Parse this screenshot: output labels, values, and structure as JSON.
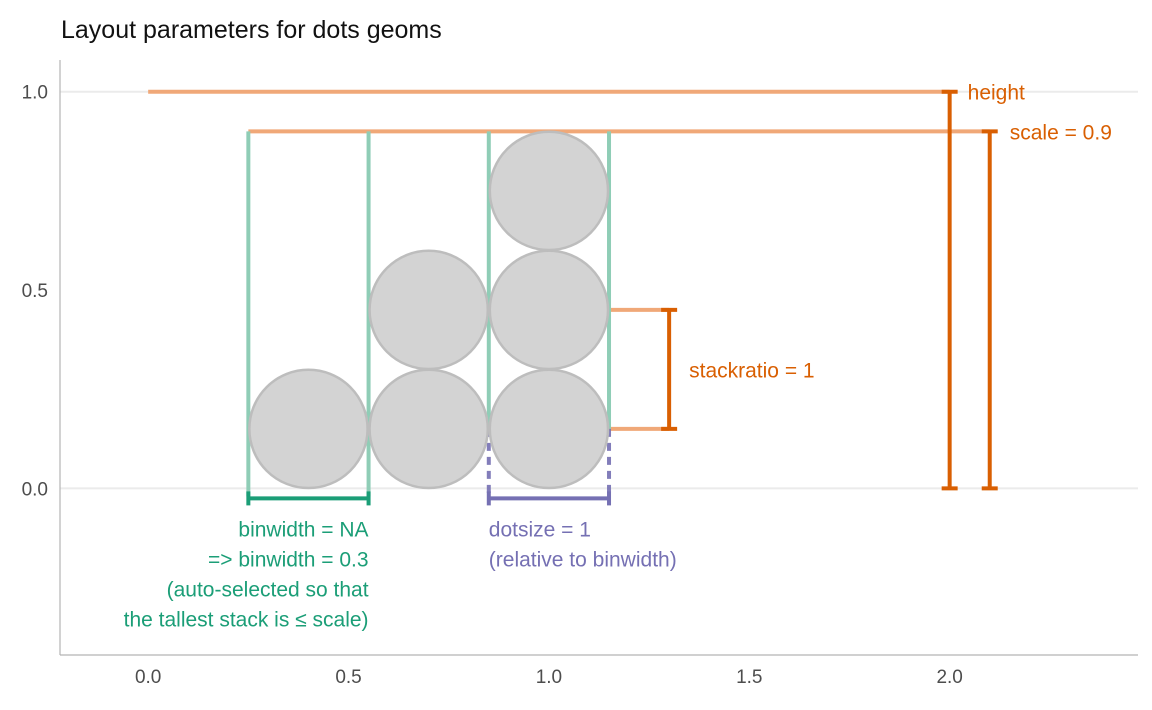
{
  "chart_data": {
    "type": "scatter",
    "title": "Layout parameters for dots geoms",
    "xlabel": "",
    "ylabel": "",
    "xlim": [
      -0.22,
      2.47
    ],
    "ylim": [
      -0.42,
      1.08
    ],
    "x_ticks": [
      0.0,
      0.5,
      1.0,
      1.5,
      2.0
    ],
    "x_tick_labels": [
      "0.0",
      "0.5",
      "1.0",
      "1.5",
      "2.0"
    ],
    "y_ticks": [
      0.0,
      0.5,
      1.0
    ],
    "y_tick_labels": [
      "0.0",
      "0.5",
      "1.0"
    ],
    "y_gridlines": [
      0.0,
      1.0
    ],
    "dots": [
      {
        "x": 0.4,
        "y": 0.15
      },
      {
        "x": 0.7,
        "y": 0.15
      },
      {
        "x": 0.7,
        "y": 0.45
      },
      {
        "x": 1.0,
        "y": 0.15
      },
      {
        "x": 1.0,
        "y": 0.45
      },
      {
        "x": 1.0,
        "y": 0.75
      }
    ],
    "dot_diameter": 0.3,
    "bin_edges": [
      0.25,
      0.55,
      0.85,
      1.15
    ],
    "height_line": {
      "x_start": 0.0,
      "x_end": 2.0,
      "y": 1.0
    },
    "scale_line": {
      "x_start": 0.25,
      "x_end": 2.1,
      "y": 0.9
    },
    "height_bracket": {
      "x": 2.0,
      "y_min": 0.0,
      "y_max": 1.0
    },
    "scale_bracket": {
      "x": 2.1,
      "y_min": 0.0,
      "y_max": 0.9
    },
    "stackratio_lines": {
      "x_start": 1.0,
      "x_end": 1.3,
      "y_values": [
        0.15,
        0.45
      ]
    },
    "stackratio_bracket": {
      "x": 1.3,
      "y_min": 0.15,
      "y_max": 0.45
    },
    "binwidth_bracket": {
      "x_min": 0.25,
      "x_max": 0.55
    },
    "dotsize_bracket": {
      "x_min": 0.85,
      "x_max": 1.15
    },
    "colors": {
      "orange_dark": "#d95f02",
      "orange_light": "#f0a878",
      "green_dark": "#1b9e77",
      "green_light": "#8fcdb6",
      "purple": "#7570b3",
      "dot_fill": "#d3d3d3",
      "dot_stroke": "#bdbdbd",
      "grid": "#ebebeb",
      "axis": "#b3b3b3",
      "tick_text": "#4d4d4d"
    },
    "annotations": {
      "height": "height",
      "scale": "scale = 0.9",
      "stackratio": "stackratio = 1",
      "binwidth": [
        "binwidth = NA",
        "=> binwidth = 0.3",
        "(auto-selected so that",
        "the tallest stack is ≤ scale)"
      ],
      "dotsize": [
        "dotsize = 1",
        "(relative to binwidth)"
      ]
    }
  }
}
